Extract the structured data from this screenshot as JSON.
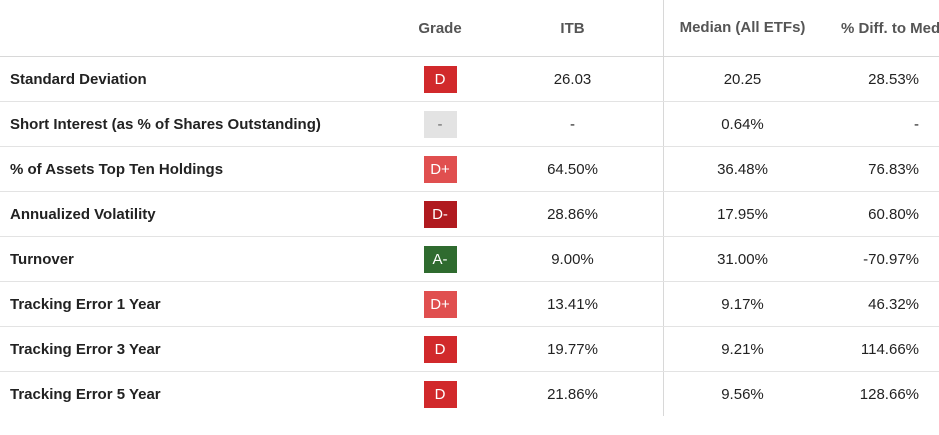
{
  "header": {
    "metric": "",
    "grade": "Grade",
    "itb": "ITB",
    "median": "Median (All ETFs)",
    "diff": "% Diff. to Medi"
  },
  "colors": {
    "D": "#d1292b",
    "D+": "#e04f4f",
    "D-": "#b01a1f",
    "A-": "#2f6b2f",
    "-": "#e3e3e3"
  },
  "rows": [
    {
      "metric": "Standard Deviation",
      "grade": "D",
      "itb": "26.03",
      "median": "20.25",
      "diff": "28.53%"
    },
    {
      "metric": "Short Interest (as % of Shares Outstanding)",
      "grade": "-",
      "itb": "-",
      "median": "0.64%",
      "diff": "-"
    },
    {
      "metric": "% of Assets Top Ten Holdings",
      "grade": "D+",
      "itb": "64.50%",
      "median": "36.48%",
      "diff": "76.83%"
    },
    {
      "metric": "Annualized Volatility",
      "grade": "D-",
      "itb": "28.86%",
      "median": "17.95%",
      "diff": "60.80%"
    },
    {
      "metric": "Turnover",
      "grade": "A-",
      "itb": "9.00%",
      "median": "31.00%",
      "diff": "-70.97%"
    },
    {
      "metric": "Tracking Error 1 Year",
      "grade": "D+",
      "itb": "13.41%",
      "median": "9.17%",
      "diff": "46.32%"
    },
    {
      "metric": "Tracking Error 3 Year",
      "grade": "D",
      "itb": "19.77%",
      "median": "9.21%",
      "diff": "114.66%"
    },
    {
      "metric": "Tracking Error 5 Year",
      "grade": "D",
      "itb": "21.86%",
      "median": "9.56%",
      "diff": "128.66%"
    }
  ]
}
